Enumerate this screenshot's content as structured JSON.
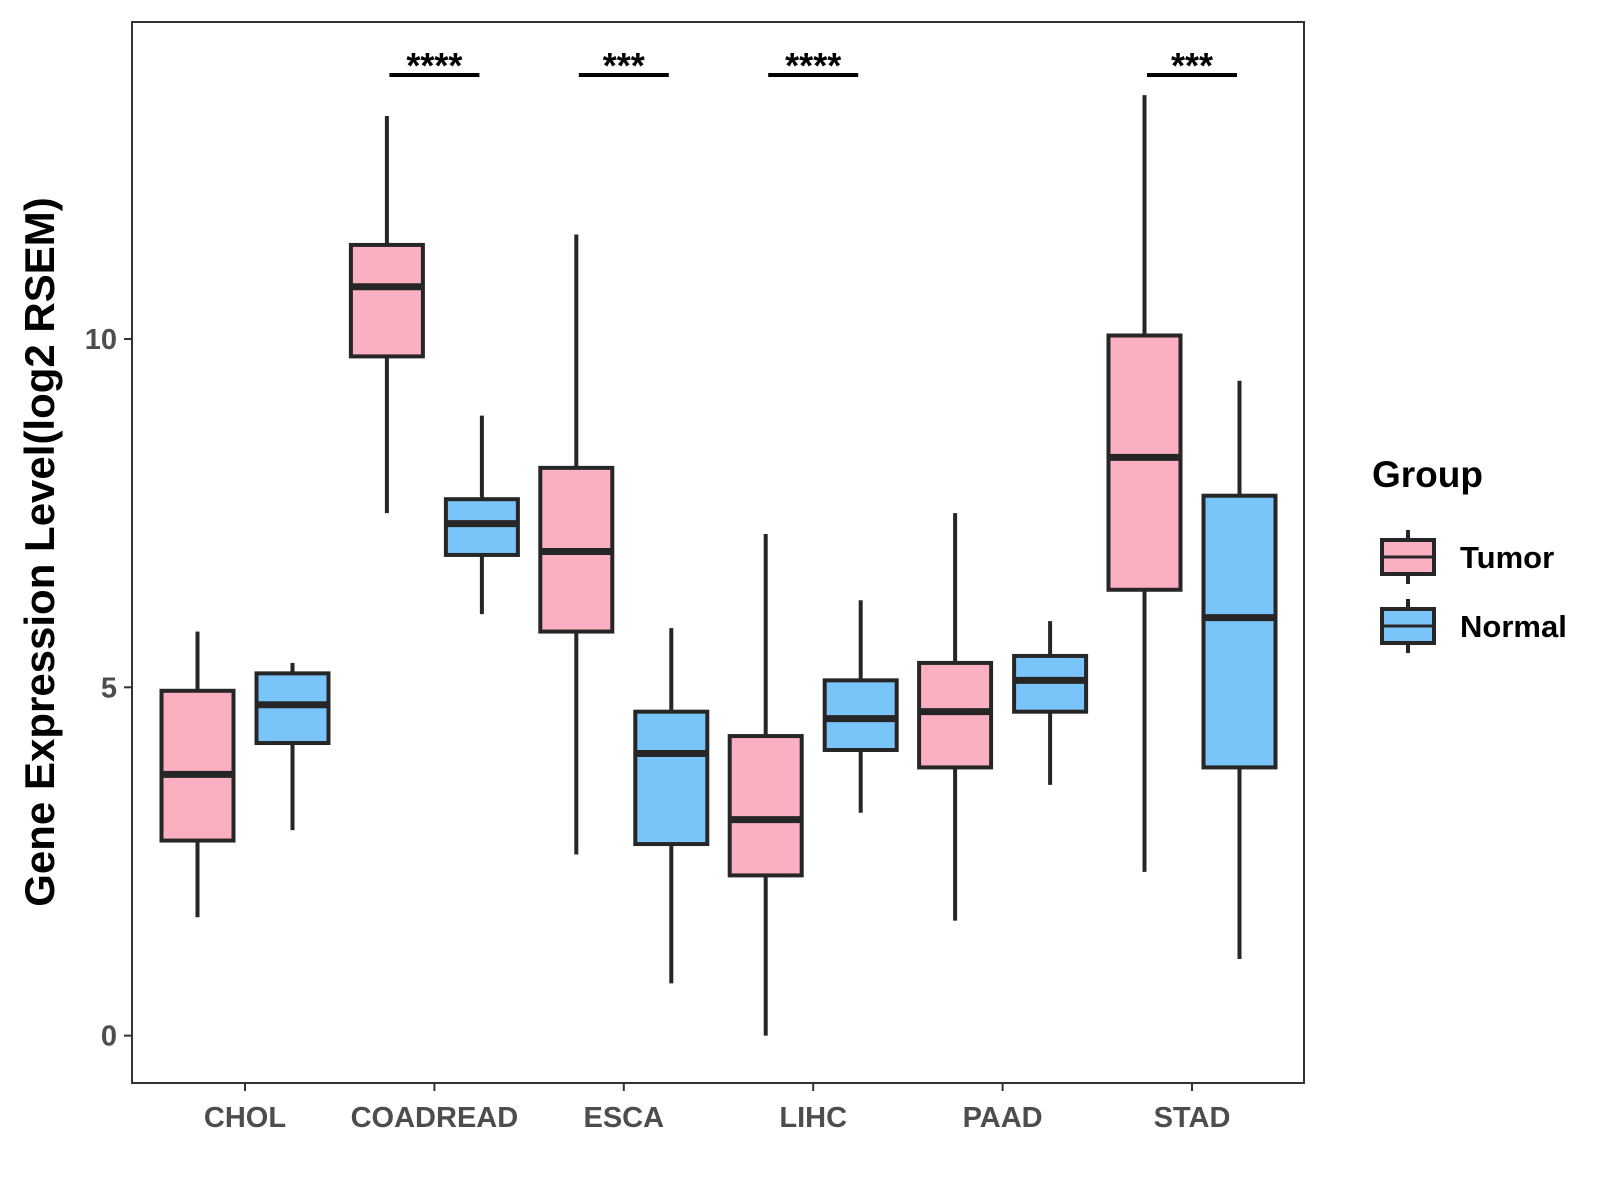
{
  "chart_data": {
    "type": "boxplot",
    "title": "",
    "xlabel": "",
    "ylabel": "Gene Expression Level(log2 RSEM)",
    "ylim": [
      -0.68,
      14.55
    ],
    "yticks": [
      0,
      5,
      10
    ],
    "categories": [
      "CHOL",
      "COADREAD",
      "ESCA",
      "LIHC",
      "PAAD",
      "STAD"
    ],
    "legend": {
      "title": "Group",
      "position": "right",
      "entries": [
        "Tumor",
        "Normal"
      ]
    },
    "colors": {
      "Tumor": "#FBB0C2",
      "Normal": "#79C4F8"
    },
    "series": [
      {
        "name": "Tumor",
        "boxes": [
          {
            "min": 1.7,
            "q1": 2.8,
            "median": 3.75,
            "q3": 4.95,
            "max": 5.8
          },
          {
            "min": 7.5,
            "q1": 9.75,
            "median": 10.75,
            "q3": 11.35,
            "max": 13.2
          },
          {
            "min": 2.6,
            "q1": 5.8,
            "median": 6.95,
            "q3": 8.15,
            "max": 11.5
          },
          {
            "min": 0.0,
            "q1": 2.3,
            "median": 3.1,
            "q3": 4.3,
            "max": 7.2
          },
          {
            "min": 1.65,
            "q1": 3.85,
            "median": 4.65,
            "q3": 5.35,
            "max": 7.5
          },
          {
            "min": 2.35,
            "q1": 6.4,
            "median": 8.3,
            "q3": 10.05,
            "max": 13.5
          }
        ]
      },
      {
        "name": "Normal",
        "boxes": [
          {
            "min": 2.95,
            "q1": 4.2,
            "median": 4.75,
            "q3": 5.2,
            "max": 5.35
          },
          {
            "min": 6.05,
            "q1": 6.9,
            "median": 7.35,
            "q3": 7.7,
            "max": 8.9
          },
          {
            "min": 0.75,
            "q1": 2.75,
            "median": 4.05,
            "q3": 4.65,
            "max": 5.85
          },
          {
            "min": 3.2,
            "q1": 4.1,
            "median": 4.55,
            "q3": 5.1,
            "max": 6.25
          },
          {
            "min": 3.6,
            "q1": 4.65,
            "median": 5.1,
            "q3": 5.45,
            "max": 5.95
          },
          {
            "min": 1.1,
            "q1": 3.85,
            "median": 6.0,
            "q3": 7.75,
            "max": 9.4
          }
        ]
      }
    ],
    "significance": [
      {
        "category": "COADREAD",
        "label": "****"
      },
      {
        "category": "ESCA",
        "label": "***"
      },
      {
        "category": "LIHC",
        "label": "****"
      },
      {
        "category": "STAD",
        "label": "***"
      }
    ]
  }
}
